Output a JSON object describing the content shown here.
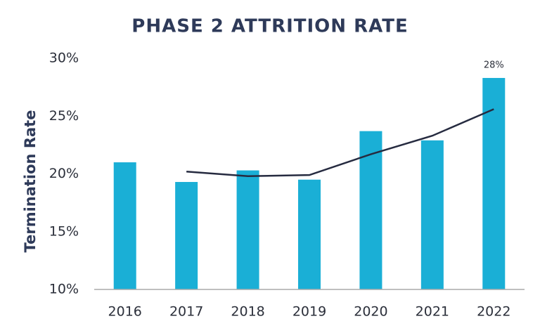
{
  "chart_data": {
    "type": "bar",
    "title": "PHASE 2 ATTRITION RATE",
    "y_label": "Termination Rate",
    "categories": [
      "2016",
      "2017",
      "2018",
      "2019",
      "2020",
      "2021",
      "2022"
    ],
    "series": [
      {
        "type": "bar",
        "color": "#1aafd6",
        "values": [
          21.0,
          19.3,
          20.3,
          19.5,
          23.7,
          22.9,
          28.3
        ],
        "value_labels": [
          null,
          null,
          null,
          null,
          null,
          null,
          "28%"
        ]
      },
      {
        "type": "line",
        "color": "#262b40",
        "values": [
          null,
          20.2,
          19.8,
          19.9,
          21.7,
          23.3,
          25.6
        ]
      }
    ],
    "ylim": [
      10,
      30
    ],
    "yticks": [
      {
        "value": 10,
        "label": "10%"
      },
      {
        "value": 15,
        "label": "15%"
      },
      {
        "value": 20,
        "label": "20%"
      },
      {
        "value": 25,
        "label": "25%"
      },
      {
        "value": 30,
        "label": "30%"
      }
    ],
    "grid": false
  }
}
